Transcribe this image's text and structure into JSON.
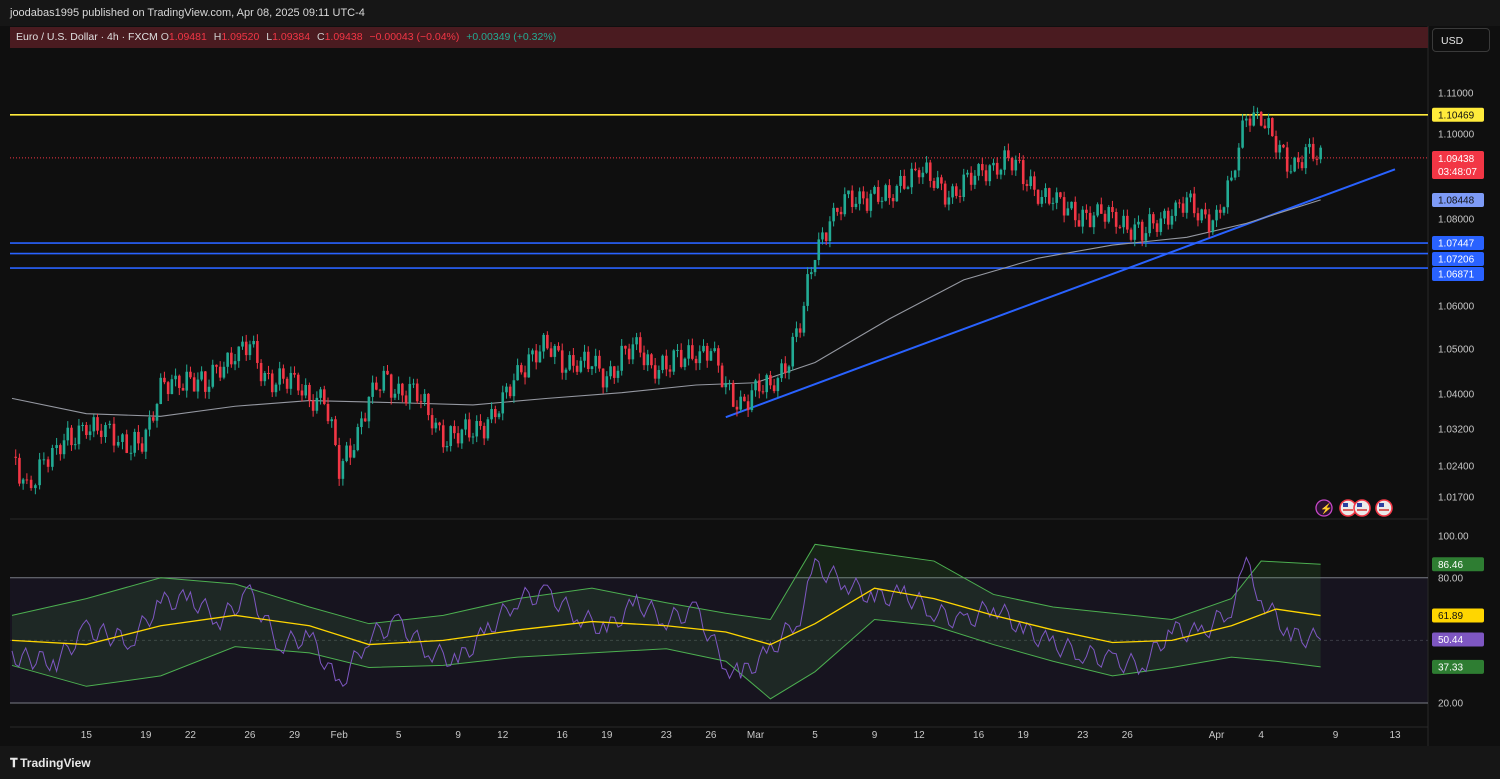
{
  "header": {
    "published_line": "joodabas1995 published on TradingView.com, Apr 08, 2025 09:11 UTC-4"
  },
  "legend": {
    "symbol": "Euro / U.S. Dollar · 4h · FXCM",
    "o_label": "O",
    "o_value": "1.09481",
    "h_label": "H",
    "h_value": "1.09520",
    "l_label": "L",
    "l_value": "1.09384",
    "c_label": "C",
    "c_value": "1.09438",
    "change": "−0.00043 (−0.04%)",
    "change2": "+0.00349 (+0.32%)"
  },
  "currency_button": "USD",
  "footer": {
    "brand": "TradingView"
  },
  "colors": {
    "background": "#0f0f0f",
    "up_candle": "#22ab94",
    "down_candle": "#f23645",
    "sma": "#9598a1",
    "trendline": "#2962ff",
    "resistance": "#ffeb3b",
    "support": "#2962ff",
    "rsi_line": "#7e57c2",
    "rsi_ma": "#ffd600",
    "bands": "#4caf50"
  },
  "icons": [
    "lightning-icon",
    "us-flag-icon",
    "us-flag-icon",
    "us-flag-icon"
  ],
  "chart_data": [
    {
      "type": "candlestick",
      "title": "Euro / U.S. Dollar · 4h · FXCM",
      "price_ticks": [
        "1.11000",
        "1.10000",
        "1.08000",
        "1.06000",
        "1.05000",
        "1.04000",
        "1.03200",
        "1.02400",
        "1.01700"
      ],
      "ylim": [
        1.0155,
        1.1155
      ],
      "x_ticks": [
        "15",
        "19",
        "22",
        "26",
        "29",
        "Feb",
        "5",
        "9",
        "12",
        "16",
        "19",
        "23",
        "26",
        "Mar",
        "5",
        "9",
        "12",
        "16",
        "19",
        "23",
        "26",
        "Apr",
        "4",
        "9",
        "13"
      ],
      "horizontal_levels": [
        {
          "label": "1.10469",
          "value": 1.10469,
          "color": "#ffeb3b"
        },
        {
          "label": "1.07447",
          "value": 1.07447,
          "color": "#2962ff"
        },
        {
          "label": "1.07206",
          "value": 1.07206,
          "color": "#2962ff"
        },
        {
          "label": "1.06871",
          "value": 1.06871,
          "color": "#2962ff"
        }
      ],
      "last_price": {
        "label": "1.09438",
        "countdown": "03:48:07",
        "value": 1.09438
      },
      "sma_last": {
        "label": "1.08448",
        "value": 1.08448
      },
      "trendline": {
        "from": {
          "x": "Feb 27",
          "y": 1.0347
        },
        "to": {
          "x": "Apr 13",
          "y": 1.0917
        }
      },
      "close_path": [
        [
          "Jan 10",
          1.026
        ],
        [
          "Jan 11",
          1.02
        ],
        [
          "Jan 13",
          1.027
        ],
        [
          "Jan 14",
          1.03
        ],
        [
          "Jan 15",
          1.034
        ],
        [
          "Jan 16",
          1.031
        ],
        [
          "Jan 18",
          1.029
        ],
        [
          "Jan 19",
          1.031
        ],
        [
          "Jan 20",
          1.04
        ],
        [
          "Jan 21",
          1.043
        ],
        [
          "Jan 22",
          1.044
        ],
        [
          "Jan 23",
          1.041
        ],
        [
          "Jan 24",
          1.047
        ],
        [
          "Jan 25",
          1.049
        ],
        [
          "Jan 26",
          1.05
        ],
        [
          "Jan 27",
          1.044
        ],
        [
          "Jan 28",
          1.043
        ],
        [
          "Jan 29",
          1.042
        ],
        [
          "Jan 30",
          1.04
        ],
        [
          "Jan 31",
          1.039
        ],
        [
          "Feb 1",
          1.023
        ],
        [
          "Feb 2",
          1.03
        ],
        [
          "Feb 3",
          1.038
        ],
        [
          "Feb 4",
          1.043
        ],
        [
          "Feb 5",
          1.041
        ],
        [
          "Feb 6",
          1.04
        ],
        [
          "Feb 7",
          1.036
        ],
        [
          "Feb 8",
          1.031
        ],
        [
          "Feb 9",
          1.03
        ],
        [
          "Feb 10",
          1.032
        ],
        [
          "Feb 11",
          1.034
        ],
        [
          "Feb 12",
          1.037
        ],
        [
          "Feb 13",
          1.045
        ],
        [
          "Feb 14",
          1.049
        ],
        [
          "Feb 15",
          1.05
        ],
        [
          "Feb 16",
          1.048
        ],
        [
          "Feb 17",
          1.047
        ],
        [
          "Feb 18",
          1.046
        ],
        [
          "Feb 19",
          1.044
        ],
        [
          "Feb 20",
          1.048
        ],
        [
          "Feb 21",
          1.05
        ],
        [
          "Feb 22",
          1.047
        ],
        [
          "Feb 23",
          1.046
        ],
        [
          "Feb 24",
          1.048
        ],
        [
          "Feb 25",
          1.05
        ],
        [
          "Feb 26",
          1.049
        ],
        [
          "Feb 27",
          1.041
        ],
        [
          "Feb 28",
          1.038
        ],
        [
          "Mar 1",
          1.04
        ],
        [
          "Mar 2",
          1.042
        ],
        [
          "Mar 3",
          1.047
        ],
        [
          "Mar 4",
          1.055
        ],
        [
          "Mar 5",
          1.073
        ],
        [
          "Mar 6",
          1.08
        ],
        [
          "Mar 7",
          1.083
        ],
        [
          "Mar 8",
          1.085
        ],
        [
          "Mar 9",
          1.086
        ],
        [
          "Mar 10",
          1.084
        ],
        [
          "Mar 11",
          1.09
        ],
        [
          "Mar 12",
          1.092
        ],
        [
          "Mar 13",
          1.088
        ],
        [
          "Mar 14",
          1.086
        ],
        [
          "Mar 15",
          1.088
        ],
        [
          "Mar 16",
          1.09
        ],
        [
          "Mar 17",
          1.093
        ],
        [
          "Mar 18",
          1.094
        ],
        [
          "Mar 19",
          1.09
        ],
        [
          "Mar 20",
          1.087
        ],
        [
          "Mar 21",
          1.084
        ],
        [
          "Mar 22",
          1.082
        ],
        [
          "Mar 23",
          1.081
        ],
        [
          "Mar 24",
          1.08
        ],
        [
          "Mar 25",
          1.081
        ],
        [
          "Mar 26",
          1.079
        ],
        [
          "Mar 27",
          1.076
        ],
        [
          "Mar 28",
          1.08
        ],
        [
          "Mar 29",
          1.082
        ],
        [
          "Mar 30",
          1.083
        ],
        [
          "Mar 31",
          1.081
        ],
        [
          "Apr 1",
          1.08
        ],
        [
          "Apr 2",
          1.088
        ],
        [
          "Apr 3",
          1.106
        ],
        [
          "Apr 4",
          1.104
        ],
        [
          "Apr 5",
          1.097
        ],
        [
          "Apr 6",
          1.093
        ],
        [
          "Apr 7",
          1.095
        ],
        [
          "Apr 8",
          1.094
        ]
      ],
      "sma_path": [
        [
          "Jan 10",
          1.039
        ],
        [
          "Jan 15",
          1.0355
        ],
        [
          "Jan 20",
          1.0349
        ],
        [
          "Jan 25",
          1.0372
        ],
        [
          "Jan 30",
          1.0385
        ],
        [
          "Feb 5",
          1.038
        ],
        [
          "Feb 10",
          1.0375
        ],
        [
          "Feb 15",
          1.039
        ],
        [
          "Feb 20",
          1.0403
        ],
        [
          "Feb 25",
          1.042
        ],
        [
          "Mar 1",
          1.0425
        ],
        [
          "Mar 5",
          1.047
        ],
        [
          "Mar 10",
          1.057
        ],
        [
          "Mar 15",
          1.066
        ],
        [
          "Mar 20",
          1.071
        ],
        [
          "Mar 25",
          1.074
        ],
        [
          "Mar 30",
          1.0758
        ],
        [
          "Apr 3",
          1.079
        ],
        [
          "Apr 8",
          1.0845
        ]
      ]
    },
    {
      "type": "line",
      "title": "RSI",
      "ylim": [
        20,
        100
      ],
      "y_ticks": [
        "100.00",
        "80.00",
        "20.00"
      ],
      "band_levels": [
        80,
        20
      ],
      "series": [
        {
          "tag": "86.46",
          "value": 86.46,
          "color": "#4caf50"
        },
        {
          "tag": "61.89",
          "value": 61.89,
          "color": "#ffd600"
        },
        {
          "tag": "50.44",
          "value": 50.44,
          "color": "#7e57c2"
        },
        {
          "tag": "37.33",
          "value": 37.33,
          "color": "#4caf50"
        }
      ],
      "rsi_path": [
        [
          "Jan 10",
          42
        ],
        [
          "Jan 13",
          40
        ],
        [
          "Jan 15",
          55
        ],
        [
          "Jan 18",
          50
        ],
        [
          "Jan 20",
          68
        ],
        [
          "Jan 22",
          70
        ],
        [
          "Jan 24",
          60
        ],
        [
          "Jan 26",
          72
        ],
        [
          "Jan 28",
          48
        ],
        [
          "Jan 30",
          52
        ],
        [
          "Feb 1",
          28
        ],
        [
          "Feb 3",
          52
        ],
        [
          "Feb 5",
          58
        ],
        [
          "Feb 7",
          45
        ],
        [
          "Feb 9",
          40
        ],
        [
          "Feb 11",
          55
        ],
        [
          "Feb 13",
          70
        ],
        [
          "Feb 15",
          72
        ],
        [
          "Feb 17",
          62
        ],
        [
          "Feb 19",
          55
        ],
        [
          "Feb 21",
          68
        ],
        [
          "Feb 23",
          60
        ],
        [
          "Feb 25",
          64
        ],
        [
          "Feb 27",
          38
        ],
        [
          "Feb 28",
          33
        ],
        [
          "Mar 2",
          45
        ],
        [
          "Mar 4",
          62
        ],
        [
          "Mar 5",
          85
        ],
        [
          "Mar 7",
          78
        ],
        [
          "Mar 9",
          70
        ],
        [
          "Mar 11",
          72
        ],
        [
          "Mar 13",
          64
        ],
        [
          "Mar 15",
          58
        ],
        [
          "Mar 17",
          67
        ],
        [
          "Mar 19",
          55
        ],
        [
          "Mar 21",
          48
        ],
        [
          "Mar 23",
          44
        ],
        [
          "Mar 25",
          40
        ],
        [
          "Mar 27",
          38
        ],
        [
          "Mar 29",
          55
        ],
        [
          "Mar 31",
          53
        ],
        [
          "Apr 2",
          66
        ],
        [
          "Apr 3",
          86
        ],
        [
          "Apr 4",
          70
        ],
        [
          "Apr 6",
          52
        ],
        [
          "Apr 8",
          50.44
        ]
      ],
      "ma_path": [
        [
          "Jan 10",
          50
        ],
        [
          "Jan 15",
          48
        ],
        [
          "Jan 20",
          57
        ],
        [
          "Jan 25",
          62
        ],
        [
          "Jan 30",
          57
        ],
        [
          "Feb 3",
          48
        ],
        [
          "Feb 8",
          50
        ],
        [
          "Feb 13",
          55
        ],
        [
          "Feb 18",
          59
        ],
        [
          "Feb 23",
          57
        ],
        [
          "Feb 27",
          54
        ],
        [
          "Mar 2",
          48
        ],
        [
          "Mar 5",
          58
        ],
        [
          "Mar 9",
          75
        ],
        [
          "Mar 13",
          70
        ],
        [
          "Mar 17",
          62
        ],
        [
          "Mar 21",
          55
        ],
        [
          "Mar 25",
          49
        ],
        [
          "Mar 29",
          50
        ],
        [
          "Apr 2",
          57
        ],
        [
          "Apr 5",
          65
        ],
        [
          "Apr 8",
          61.89
        ]
      ],
      "upper_band_path": [
        [
          "Jan 10",
          62
        ],
        [
          "Jan 15",
          70
        ],
        [
          "Jan 20",
          80
        ],
        [
          "Jan 25",
          77
        ],
        [
          "Jan 30",
          66
        ],
        [
          "Feb 3",
          58
        ],
        [
          "Feb 8",
          62
        ],
        [
          "Feb 13",
          70
        ],
        [
          "Feb 18",
          75
        ],
        [
          "Feb 23",
          68
        ],
        [
          "Feb 27",
          63
        ],
        [
          "Mar 2",
          60
        ],
        [
          "Mar 5",
          96
        ],
        [
          "Mar 9",
          92
        ],
        [
          "Mar 13",
          88
        ],
        [
          "Mar 17",
          72
        ],
        [
          "Mar 21",
          66
        ],
        [
          "Mar 25",
          63
        ],
        [
          "Mar 29",
          60
        ],
        [
          "Apr 2",
          70
        ],
        [
          "Apr 4",
          88
        ],
        [
          "Apr 8",
          86.46
        ]
      ],
      "lower_band_path": [
        [
          "Jan 10",
          38
        ],
        [
          "Jan 15",
          28
        ],
        [
          "Jan 20",
          33
        ],
        [
          "Jan 25",
          47
        ],
        [
          "Jan 30",
          44
        ],
        [
          "Feb 3",
          37
        ],
        [
          "Feb 8",
          38
        ],
        [
          "Feb 13",
          42
        ],
        [
          "Feb 18",
          44
        ],
        [
          "Feb 23",
          46
        ],
        [
          "Feb 27",
          40
        ],
        [
          "Mar 2",
          22
        ],
        [
          "Mar 5",
          35
        ],
        [
          "Mar 9",
          60
        ],
        [
          "Mar 13",
          57
        ],
        [
          "Mar 17",
          48
        ],
        [
          "Mar 21",
          40
        ],
        [
          "Mar 25",
          33
        ],
        [
          "Mar 29",
          37
        ],
        [
          "Apr 2",
          42
        ],
        [
          "Apr 5",
          40
        ],
        [
          "Apr 8",
          37.33
        ]
      ]
    }
  ]
}
